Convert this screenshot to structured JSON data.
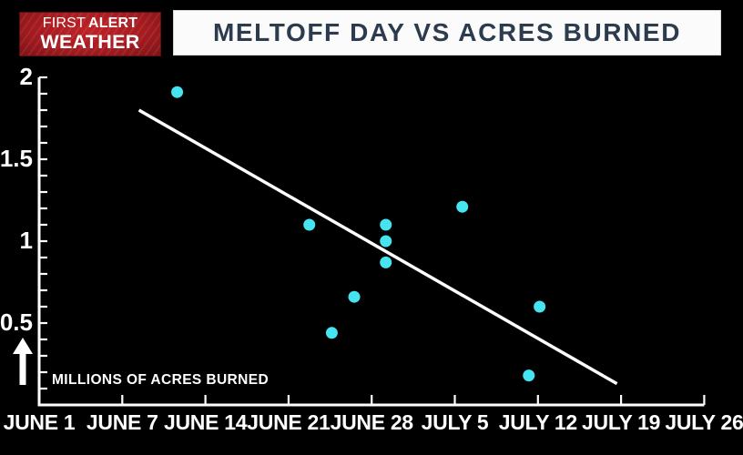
{
  "logo": {
    "first": "FIRST",
    "alert": "ALERT",
    "weather": "WEATHER",
    "bg_color": "#a41b20",
    "text_color": "#ffffff"
  },
  "header": {
    "title": "MELTOFF DAY VS ACRES BURNED",
    "text_color": "#2c3c4e",
    "bg_color": "#fbfbfb"
  },
  "chart_data": {
    "type": "scatter",
    "title": "MELTOFF DAY VS ACRES BURNED",
    "background_color": "#000000",
    "axis_color": "#ffffff",
    "point_color": "#45e4f0",
    "trend_color": "#ffffff",
    "grid": "off",
    "xlabel": "",
    "ylabel": "MILLIONS OF ACRES BURNED",
    "x_tick_labels": [
      "JUNE 1",
      "JUNE 7",
      "JUNE 14",
      "JUNE 21",
      "JUNE 28",
      "JULY 5",
      "JULY 12",
      "JULY 19",
      "JULY 26"
    ],
    "y_tick_labels": [
      "0.5",
      "1",
      "1.5",
      "2"
    ],
    "y_tick_values": [
      0.5,
      1,
      1.5,
      2
    ],
    "ylim": [
      0,
      2
    ],
    "y_minor_step": 0.1,
    "points": [
      {
        "approx_date": "JUNE 12",
        "x": 1.66,
        "y": 1.91
      },
      {
        "approx_date": "JUNE 23",
        "x": 3.25,
        "y": 1.1
      },
      {
        "approx_date": "JUNE 25",
        "x": 3.52,
        "y": 0.44
      },
      {
        "approx_date": "JUNE 27",
        "x": 3.79,
        "y": 0.66
      },
      {
        "approx_date": "JUNE 29",
        "x": 4.17,
        "y": 1.1
      },
      {
        "approx_date": "JUNE 29",
        "x": 4.17,
        "y": 1.0
      },
      {
        "approx_date": "JUNE 29",
        "x": 4.17,
        "y": 0.87
      },
      {
        "approx_date": "JULY 6",
        "x": 5.09,
        "y": 1.21
      },
      {
        "approx_date": "JULY 11",
        "x": 5.89,
        "y": 0.18
      },
      {
        "approx_date": "JULY 12",
        "x": 6.02,
        "y": 0.6
      }
    ],
    "trend_line": {
      "x1": 1.2,
      "y1": 1.8,
      "x2": 6.95,
      "y2": 0.13
    },
    "legend": "none"
  }
}
